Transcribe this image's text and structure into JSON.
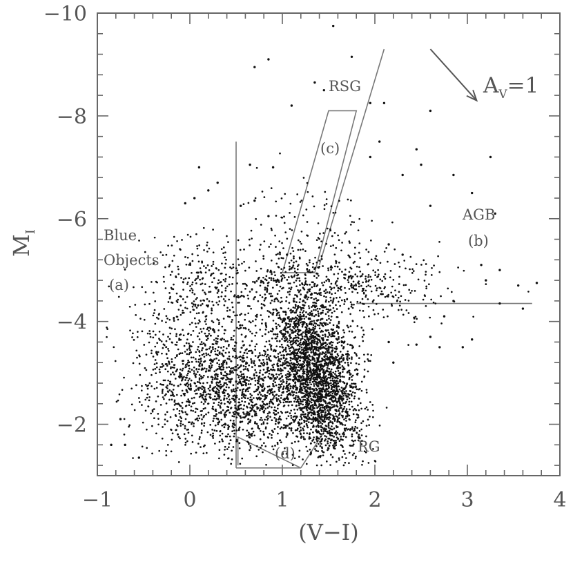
{
  "chart_data": {
    "type": "scatter",
    "title": "",
    "xlabel": "(V−I)",
    "ylabel_main": "M",
    "ylabel_sub": "I",
    "xlim": [
      -1,
      4
    ],
    "ylim": [
      -1,
      -10
    ],
    "x_ticks": [
      -1,
      0,
      1,
      2,
      3,
      4
    ],
    "y_ticks": [
      -10,
      -8,
      -6,
      -4,
      -2
    ],
    "x_tick_labels": [
      "−1",
      "0",
      "1",
      "2",
      "3",
      "4"
    ],
    "y_tick_labels": [
      "−10",
      "−8",
      "−6",
      "−4",
      "−2"
    ],
    "grid": false,
    "annotations": {
      "blue_line1": "Blue",
      "blue_line2": "Objects",
      "blue_tag": "(a)",
      "agb": "AGB",
      "agb_tag": "(b)",
      "rsg": "RSG",
      "rsg_tag": "(c)",
      "rg": "RG",
      "rg_tag": "(d)",
      "reddening_main": "A",
      "reddening_sub": "V",
      "reddening_val": "=1"
    },
    "reddening_vector": {
      "from": [
        2.6,
        -9.3
      ],
      "to": [
        3.1,
        -8.3
      ]
    },
    "region_boundaries": {
      "blue_cut": [
        [
          0.5,
          -1.15
        ],
        [
          0.5,
          -7.5
        ]
      ],
      "agb_cut": [
        [
          1.8,
          -4.35
        ],
        [
          3.7,
          -4.35
        ]
      ],
      "rsg_box": [
        [
          1.0,
          -4.95
        ],
        [
          1.35,
          -4.95
        ],
        [
          1.8,
          -8.1
        ],
        [
          1.5,
          -8.1
        ],
        [
          1.0,
          -4.95
        ]
      ],
      "rsg_line": [
        [
          1.4,
          -5.1
        ],
        [
          2.1,
          -9.3
        ]
      ],
      "rg_box": [
        [
          0.52,
          -1.2
        ],
        [
          0.52,
          -1.75
        ],
        [
          1.2,
          -1.15
        ],
        [
          0.5,
          -1.15
        ]
      ],
      "rg_line": [
        [
          1.2,
          -1.15
        ],
        [
          1.45,
          -1.85
        ]
      ]
    },
    "series": [
      {
        "points": [
          [
            1.55,
            -9.75
          ],
          [
            0.85,
            -9.1
          ],
          [
            1.35,
            -8.65
          ],
          [
            0.7,
            -8.95
          ],
          [
            1.75,
            -9.15
          ],
          [
            1.1,
            -8.2
          ],
          [
            1.45,
            -8.5
          ],
          [
            2.1,
            -8.25
          ],
          [
            2.6,
            -8.1
          ],
          [
            3.25,
            -7.2
          ],
          [
            2.05,
            -7.5
          ],
          [
            1.95,
            -8.25
          ],
          [
            0.65,
            -7.05
          ],
          [
            0.9,
            -7.0
          ],
          [
            2.45,
            -7.35
          ],
          [
            2.6,
            -6.25
          ],
          [
            2.85,
            -6.85
          ],
          [
            2.5,
            -7.05
          ],
          [
            0.1,
            -7.0
          ],
          [
            0.2,
            -6.55
          ],
          [
            0.3,
            -6.7
          ],
          [
            -0.05,
            -6.3
          ],
          [
            0.05,
            -6.4
          ],
          [
            1.95,
            -7.2
          ],
          [
            2.3,
            -6.85
          ],
          [
            3.05,
            -6.5
          ],
          [
            3.3,
            -6.1
          ],
          [
            0.55,
            -6.25
          ],
          [
            0.7,
            -6.35
          ],
          [
            0.85,
            -6.05
          ],
          [
            3.15,
            -5.1
          ],
          [
            3.35,
            -5.0
          ],
          [
            3.2,
            -4.8
          ],
          [
            3.55,
            -4.7
          ],
          [
            3.75,
            -4.75
          ],
          [
            3.6,
            -4.25
          ],
          [
            2.85,
            -4.4
          ],
          [
            2.95,
            -3.5
          ],
          [
            3.05,
            -3.65
          ],
          [
            2.6,
            -3.7
          ],
          [
            2.7,
            -3.5
          ],
          [
            2.2,
            -3.2
          ],
          [
            2.45,
            -3.55
          ],
          [
            2.75,
            -4.1
          ],
          [
            3.35,
            -4.35
          ],
          [
            2.15,
            -3.6
          ],
          [
            -0.55,
            -1.35
          ],
          [
            -0.7,
            -1.6
          ],
          [
            -0.75,
            -2.1
          ],
          [
            -0.85,
            -1.6
          ],
          [
            2.15,
            -5.5
          ],
          [
            2.3,
            -5.3
          ],
          [
            1.05,
            -5.3
          ]
        ]
      }
    ]
  }
}
